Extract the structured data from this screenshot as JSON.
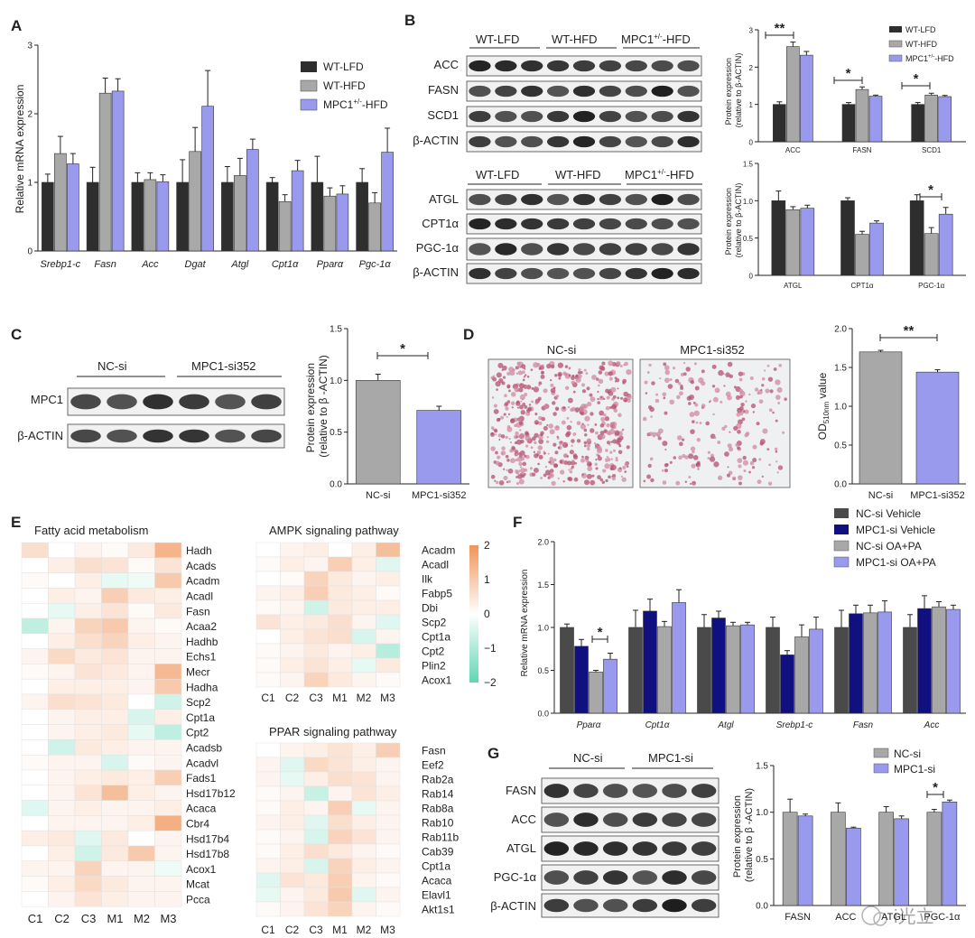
{
  "panel_labels": {
    "A": "A",
    "B": "B",
    "C": "C",
    "D": "D",
    "E": "E",
    "F": "F",
    "G": "G"
  },
  "colors": {
    "wt_lfd": "#2e2e2e",
    "wt_hfd": "#a8a8a8",
    "mpc1": "#9999ee",
    "navy": "#101080",
    "heat_pos": "#f0945a",
    "heat_neg": "#5fd6b2"
  },
  "panelA": {
    "ylabel": "Relative mRNA expression",
    "legend": [
      "WT-LFD",
      "WT-HFD",
      "MPC1",
      "+/-",
      "-HFD"
    ]
  },
  "panelB": {
    "groups_top": [
      "WT-LFD",
      "WT-HFD",
      "MPC1",
      "+/-",
      "-HFD"
    ],
    "groups_bottom": [
      "WT-LFD",
      "WT-HFD",
      "MPC1",
      "+/-",
      "-HFD"
    ],
    "blots_top": [
      "ACC",
      "FASN",
      "SCD1",
      "β-ACTIN"
    ],
    "blots_bottom": [
      "ATGL",
      "CPT1α",
      "PGC-1α",
      "β-ACTIN"
    ],
    "chart_ylabel": "Protein expression",
    "chart_ylabel2": "(relative to β-ACTIN)"
  },
  "panelC": {
    "groups": [
      "NC-si",
      "MPC1-si352"
    ],
    "blots": [
      "MPC1",
      "β-ACTIN"
    ],
    "ylabel": "Protein expression",
    "ylabel2": "(relative to β -ACTIN)"
  },
  "panelD": {
    "image_titles": [
      "NC-si",
      "MPC1-si352"
    ],
    "ylabel": "OD",
    "ylabel_sub": "510nm",
    "ylabel_tail": " value"
  },
  "panelE": {
    "title_fa": "Fatty acid metabolism",
    "title_ampk": "AMPK signaling pathway",
    "title_ppar": "PPAR signaling pathway",
    "columns": [
      "C1",
      "C2",
      "C3",
      "M1",
      "M2",
      "M3"
    ],
    "genes_fa": [
      "Hadh",
      "Acads",
      "Acadm",
      "Acadl",
      "Fasn",
      "Acaa2",
      "Hadhb",
      "Echs1",
      "Mecr",
      "Hadha",
      "Scp2",
      "Cpt1a",
      "Cpt2",
      "Acadsb",
      "Acadvl",
      "Fads1",
      "Hsd17b12",
      "Acaca",
      "Cbr4",
      "Hsd17b4",
      "Hsd17b8",
      "Acox1",
      "Mcat",
      "Pcca"
    ],
    "genes_ampk": [
      "Acadm",
      "Acadl",
      "Ilk",
      "Fabp5",
      "Dbi",
      "Scp2",
      "Cpt1a",
      "Cpt2",
      "Plin2",
      "Acox1"
    ],
    "genes_ppar": [
      "Fasn",
      "Eef2",
      "Rab2a",
      "Rab14",
      "Rab8a",
      "Rab10",
      "Rab11b",
      "Cab39",
      "Cpt1a",
      "Acaca",
      "Elavl1",
      "Akt1s1"
    ],
    "scale_labels": [
      "2",
      "1",
      "0",
      "−1",
      "−2"
    ]
  },
  "panelF": {
    "ylabel": "Relative mRNA expression",
    "legend": [
      "NC-si Vehicle",
      "MPC1-si Vehicle",
      "NC-si OA+PA",
      "MPC1-si OA+PA"
    ]
  },
  "panelG": {
    "groups": [
      "NC-si",
      "MPC1-si"
    ],
    "blots": [
      "FASN",
      "ACC",
      "ATGL",
      "PGC-1α",
      "β-ACTIN"
    ],
    "legend": [
      "NC-si",
      "MPC1-si"
    ],
    "ylabel": "Protein expression",
    "ylabel2": "(relative to β -ACTIN)"
  },
  "watermark": "i光立",
  "chart_data": [
    {
      "id": "A",
      "type": "bar",
      "ylim": [
        0,
        3
      ],
      "yticks": [
        0,
        1,
        2,
        3
      ],
      "categories": [
        "Srebp1-c",
        "Fasn",
        "Acc",
        "Dgat",
        "Atgl",
        "Cpt1α",
        "Pparα",
        "Pgc-1α"
      ],
      "series": [
        {
          "name": "WT-LFD",
          "values": [
            1,
            1,
            1,
            1,
            1,
            1,
            1,
            1
          ],
          "errors": [
            0.12,
            0.22,
            0.14,
            0.33,
            0.23,
            0.07,
            0.38,
            0.2
          ]
        },
        {
          "name": "WT-HFD",
          "values": [
            1.42,
            2.3,
            1.04,
            1.45,
            1.1,
            0.72,
            0.8,
            0.7
          ],
          "errors": [
            0.25,
            0.22,
            0.1,
            0.35,
            0.25,
            0.1,
            0.12,
            0.15
          ]
        },
        {
          "name": "MPC1+/--HFD",
          "values": [
            1.27,
            2.33,
            1.01,
            2.11,
            1.48,
            1.17,
            0.83,
            1.44
          ],
          "errors": [
            0.15,
            0.18,
            0.1,
            0.52,
            0.15,
            0.15,
            0.12,
            0.35
          ]
        }
      ]
    },
    {
      "id": "B-top",
      "type": "bar",
      "ylim": [
        0,
        3
      ],
      "yticks": [
        0,
        1,
        2,
        3
      ],
      "categories": [
        "ACC",
        "FASN",
        "SCD1"
      ],
      "series": [
        {
          "name": "WT-LFD",
          "values": [
            1,
            1,
            1
          ],
          "errors": [
            0.07,
            0.05,
            0.05
          ]
        },
        {
          "name": "WT-HFD",
          "values": [
            2.55,
            1.4,
            1.25
          ],
          "errors": [
            0.12,
            0.07,
            0.05
          ]
        },
        {
          "name": "MPC1+/--HFD",
          "values": [
            2.32,
            1.22,
            1.21
          ],
          "errors": [
            0.1,
            0.03,
            0.03
          ]
        }
      ],
      "significance": [
        "**",
        "*",
        "*"
      ]
    },
    {
      "id": "B-bottom",
      "type": "bar",
      "ylim": [
        0,
        1.5
      ],
      "yticks": [
        0,
        0.5,
        1.0,
        1.5
      ],
      "categories": [
        "ATGL",
        "CPT1α",
        "PGC-1α"
      ],
      "series": [
        {
          "name": "WT-LFD",
          "values": [
            1,
            1,
            1
          ],
          "errors": [
            0.13,
            0.04,
            0.08
          ]
        },
        {
          "name": "WT-HFD",
          "values": [
            0.88,
            0.55,
            0.56
          ],
          "errors": [
            0.04,
            0.04,
            0.08
          ]
        },
        {
          "name": "MPC1+/--HFD",
          "values": [
            0.9,
            0.7,
            0.82
          ],
          "errors": [
            0.04,
            0.03,
            0.09
          ]
        }
      ],
      "significance": [
        "*"
      ]
    },
    {
      "id": "C",
      "type": "bar",
      "ylim": [
        0,
        1.5
      ],
      "yticks": [
        0.0,
        0.5,
        1.0,
        1.5
      ],
      "categories": [
        "NC-si",
        "MPC1-si352"
      ],
      "values": [
        1.0,
        0.71
      ],
      "errors": [
        0.06,
        0.04
      ],
      "significance": [
        "*"
      ]
    },
    {
      "id": "D",
      "type": "bar",
      "ylim": [
        0,
        2.0
      ],
      "yticks": [
        0.0,
        0.5,
        1.0,
        1.5,
        2.0
      ],
      "categories": [
        "NC-si",
        "MPC1-si352"
      ],
      "values": [
        1.7,
        1.44
      ],
      "errors": [
        0.02,
        0.03
      ],
      "significance": [
        "**"
      ]
    },
    {
      "id": "F",
      "type": "bar",
      "ylim": [
        0,
        2.0
      ],
      "yticks": [
        0.0,
        0.5,
        1.0,
        1.5,
        2.0
      ],
      "categories": [
        "Pparα",
        "Cpt1α",
        "Atgl",
        "Srebp1-c",
        "Fasn",
        "Acc"
      ],
      "series": [
        {
          "name": "NC-si Vehicle",
          "values": [
            1,
            1,
            1,
            1,
            1,
            1
          ],
          "errors": [
            0.04,
            0.2,
            0.15,
            0.12,
            0.2,
            0.15
          ]
        },
        {
          "name": "MPC1-si Vehicle",
          "values": [
            0.78,
            1.19,
            1.11,
            0.68,
            1.16,
            1.22
          ],
          "errors": [
            0.08,
            0.14,
            0.08,
            0.05,
            0.1,
            0.15
          ]
        },
        {
          "name": "NC-si OA+PA",
          "values": [
            0.48,
            1.01,
            1.02,
            0.89,
            1.17,
            1.24
          ],
          "errors": [
            0.02,
            0.06,
            0.04,
            0.14,
            0.09,
            0.06
          ]
        },
        {
          "name": "MPC1-si OA+PA",
          "values": [
            0.63,
            1.29,
            1.03,
            0.98,
            1.18,
            1.21
          ],
          "errors": [
            0.07,
            0.15,
            0.03,
            0.14,
            0.13,
            0.05
          ]
        }
      ],
      "significance": [
        "*"
      ]
    },
    {
      "id": "G",
      "type": "bar",
      "ylim": [
        0,
        1.5
      ],
      "yticks": [
        0.0,
        0.5,
        1.0,
        1.5
      ],
      "categories": [
        "FASN",
        "ACC",
        "ATGL",
        "PGC-1α"
      ],
      "series": [
        {
          "name": "NC-si",
          "values": [
            1.0,
            1.0,
            1.0,
            1.0
          ],
          "errors": [
            0.14,
            0.1,
            0.06,
            0.03
          ]
        },
        {
          "name": "MPC1-si",
          "values": [
            0.96,
            0.83,
            0.93,
            1.11
          ],
          "errors": [
            0.02,
            0.01,
            0.03,
            0.02
          ]
        }
      ],
      "significance": [
        "*"
      ]
    },
    {
      "id": "E",
      "type": "heatmap",
      "range": [
        -2,
        2
      ],
      "columns": [
        "C1",
        "C2",
        "C3",
        "M1",
        "M2",
        "M3"
      ],
      "fa": [
        [
          0.6,
          0,
          0.2,
          0.1,
          0.4,
          1.4
        ],
        [
          0,
          0.3,
          0.6,
          0.5,
          0.1,
          0.5
        ],
        [
          0.1,
          0,
          0.3,
          -0.3,
          -0.2,
          1.0
        ],
        [
          0,
          0.3,
          0.2,
          0.9,
          0.4,
          0.3
        ],
        [
          0,
          -0.3,
          0.3,
          0.5,
          0.1,
          0.4
        ],
        [
          -0.8,
          0.2,
          0.8,
          1.0,
          0.2,
          0.1
        ],
        [
          0,
          0.3,
          0.6,
          0.8,
          0.3,
          0.2
        ],
        [
          0.2,
          0.7,
          0.4,
          0.5,
          0.2,
          0.2
        ],
        [
          0.1,
          0.2,
          0.5,
          0.4,
          0.2,
          1.3
        ],
        [
          0,
          0.3,
          0.3,
          0.3,
          0.2,
          1.0
        ],
        [
          0.2,
          0.6,
          0.5,
          0.4,
          0,
          -0.6
        ],
        [
          0,
          0.2,
          0.3,
          0.3,
          -0.5,
          0.3
        ],
        [
          0,
          0.2,
          0.3,
          0.4,
          -0.3,
          -0.8
        ],
        [
          0,
          -0.6,
          0.4,
          0.3,
          0.2,
          0.2
        ],
        [
          0.1,
          0.2,
          0.2,
          -0.5,
          0.1,
          0.2
        ],
        [
          0,
          0.2,
          0.3,
          0.4,
          0.3,
          0.9
        ],
        [
          0,
          0.2,
          0.5,
          1.2,
          0.3,
          0.2
        ],
        [
          -0.4,
          0.2,
          0.3,
          0.2,
          0.2,
          0.3
        ],
        [
          0,
          0.2,
          0.2,
          0.2,
          0.3,
          1.5
        ],
        [
          0.3,
          0.4,
          -0.4,
          0.4,
          0,
          0.2
        ],
        [
          0,
          0.3,
          -0.6,
          0.4,
          1.0,
          0.2
        ],
        [
          0.2,
          0.2,
          0.8,
          0.2,
          0.2,
          -0.2
        ],
        [
          0.1,
          0.3,
          0.7,
          0.4,
          0.2,
          0.2
        ],
        [
          0,
          0.2,
          0.5,
          0.3,
          0.2,
          0.2
        ]
      ],
      "ampk": [
        [
          0,
          0.2,
          0.3,
          0,
          0.3,
          1.2
        ],
        [
          0.1,
          0.3,
          0.2,
          0.9,
          0.3,
          -0.4
        ],
        [
          0,
          0.1,
          0.8,
          0.4,
          0.2,
          0.3
        ],
        [
          0.2,
          0.3,
          0.9,
          0.4,
          0.3,
          0.1
        ],
        [
          0.1,
          0.2,
          -0.6,
          0.4,
          0.3,
          0.3
        ],
        [
          0.5,
          0.3,
          0.4,
          0.6,
          0.2,
          -0.4
        ],
        [
          0,
          0.3,
          0.5,
          0.6,
          -0.5,
          0.2
        ],
        [
          0.1,
          0.2,
          0.4,
          0.2,
          0.3,
          -0.9
        ],
        [
          0.1,
          0.3,
          0.5,
          0.3,
          -0.3,
          0.4
        ],
        [
          0.1,
          0.2,
          0.8,
          0.4,
          0.2,
          0.1
        ]
      ],
      "ppar": [
        [
          0,
          0.2,
          0.3,
          0.5,
          0.3,
          0.9
        ],
        [
          0.2,
          -0.4,
          0.7,
          0.5,
          0.3,
          0.2
        ],
        [
          0.2,
          -0.3,
          0.3,
          0.6,
          0.5,
          0.2
        ],
        [
          0.1,
          0.2,
          -0.7,
          0.2,
          0.5,
          0.3
        ],
        [
          0.1,
          0.3,
          0.2,
          0.9,
          -0.3,
          0.2
        ],
        [
          0.2,
          0.3,
          -0.4,
          0.6,
          0.3,
          0.2
        ],
        [
          0.1,
          0.2,
          -0.5,
          0.8,
          0.5,
          0.2
        ],
        [
          0.1,
          0.3,
          0.6,
          0.4,
          0.2,
          0.1
        ],
        [
          0.2,
          0.3,
          -0.5,
          0.8,
          0.3,
          0.2
        ],
        [
          -0.4,
          0.5,
          0.4,
          0.9,
          0.2,
          0.1
        ],
        [
          -0.3,
          0.2,
          0.4,
          1.0,
          -0.4,
          0.2
        ],
        [
          0.1,
          0.2,
          0.5,
          0.8,
          0.2,
          0.1
        ]
      ]
    }
  ]
}
